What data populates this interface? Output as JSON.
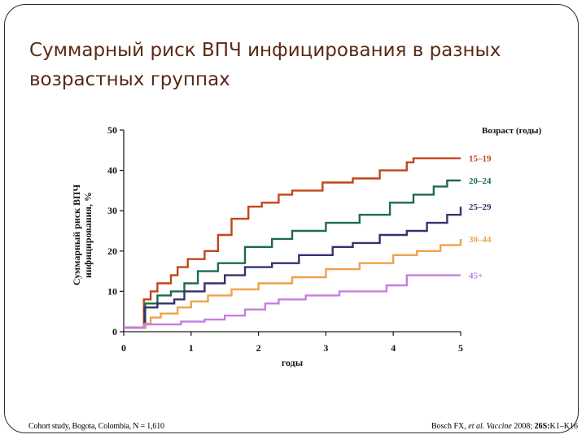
{
  "slide": {
    "title": "Суммарный риск ВПЧ инфицирования в разных возрастных группах"
  },
  "footer": {
    "left": "Cohort study, Bogota, Colombia, N = 1,610",
    "right_authors": "Bosch FX, ",
    "right_etal": "et al. Vaccine",
    "right_year": " 2008; ",
    "right_volume": "26S:",
    "right_pages": "K1–K16"
  },
  "chart_data": {
    "type": "line",
    "title": "",
    "xlabel": "годы",
    "ylabel_lines": [
      "Суммарный риск ВПЧ",
      "инфицирования, %"
    ],
    "legend_title": "Возраст (годы)",
    "xlim": [
      0,
      5
    ],
    "ylim": [
      0,
      50
    ],
    "x_ticks": [
      0,
      1,
      2,
      3,
      4,
      5
    ],
    "y_ticks": [
      0,
      10,
      20,
      30,
      40,
      50
    ],
    "grid": false,
    "series": [
      {
        "name": "15–19",
        "color": "#c0461a",
        "points": [
          [
            0,
            1
          ],
          [
            0.27,
            1
          ],
          [
            0.3,
            8
          ],
          [
            0.4,
            10
          ],
          [
            0.5,
            12
          ],
          [
            0.7,
            14
          ],
          [
            0.8,
            16
          ],
          [
            0.95,
            18
          ],
          [
            1.2,
            20
          ],
          [
            1.4,
            24
          ],
          [
            1.6,
            28
          ],
          [
            1.85,
            31
          ],
          [
            2.05,
            32
          ],
          [
            2.3,
            34
          ],
          [
            2.5,
            35
          ],
          [
            2.95,
            37
          ],
          [
            3.4,
            38
          ],
          [
            3.8,
            40
          ],
          [
            4.2,
            42
          ],
          [
            4.3,
            43
          ],
          [
            5.0,
            43
          ]
        ]
      },
      {
        "name": "20–24",
        "color": "#1e6b4c",
        "points": [
          [
            0,
            1
          ],
          [
            0.27,
            1
          ],
          [
            0.32,
            7
          ],
          [
            0.5,
            9
          ],
          [
            0.7,
            10
          ],
          [
            0.9,
            12
          ],
          [
            1.1,
            15
          ],
          [
            1.4,
            17
          ],
          [
            1.8,
            21
          ],
          [
            2.2,
            23
          ],
          [
            2.5,
            25
          ],
          [
            3.0,
            27
          ],
          [
            3.5,
            29
          ],
          [
            3.95,
            32
          ],
          [
            4.3,
            34
          ],
          [
            4.6,
            36
          ],
          [
            4.8,
            37.5
          ],
          [
            5.0,
            37.5
          ]
        ]
      },
      {
        "name": "25–29",
        "color": "#3a2f6e",
        "points": [
          [
            0,
            1
          ],
          [
            0.27,
            1
          ],
          [
            0.31,
            6
          ],
          [
            0.5,
            7
          ],
          [
            0.75,
            8
          ],
          [
            0.9,
            10
          ],
          [
            1.2,
            12
          ],
          [
            1.5,
            14
          ],
          [
            1.8,
            16
          ],
          [
            2.2,
            17
          ],
          [
            2.6,
            19
          ],
          [
            3.1,
            21
          ],
          [
            3.4,
            22
          ],
          [
            3.8,
            24
          ],
          [
            4.2,
            25
          ],
          [
            4.5,
            27
          ],
          [
            4.8,
            29
          ],
          [
            5.0,
            31
          ]
        ]
      },
      {
        "name": "30–44",
        "color": "#f0a24b",
        "points": [
          [
            0,
            1
          ],
          [
            0.27,
            1
          ],
          [
            0.32,
            2
          ],
          [
            0.4,
            3.5
          ],
          [
            0.55,
            4.5
          ],
          [
            0.8,
            6
          ],
          [
            1.0,
            7.5
          ],
          [
            1.25,
            9
          ],
          [
            1.6,
            10.5
          ],
          [
            2.0,
            12
          ],
          [
            2.5,
            13.5
          ],
          [
            3.0,
            15.5
          ],
          [
            3.5,
            17
          ],
          [
            4.0,
            19
          ],
          [
            4.35,
            20
          ],
          [
            4.7,
            21.5
          ],
          [
            5.0,
            23
          ]
        ]
      },
      {
        "name": "45+",
        "color": "#c77de0",
        "points": [
          [
            0,
            1
          ],
          [
            0.27,
            1
          ],
          [
            0.3,
            1.8
          ],
          [
            0.85,
            2.5
          ],
          [
            1.2,
            3
          ],
          [
            1.5,
            4
          ],
          [
            1.8,
            5.5
          ],
          [
            2.1,
            7
          ],
          [
            2.3,
            8
          ],
          [
            2.7,
            9
          ],
          [
            3.2,
            10
          ],
          [
            3.9,
            11.5
          ],
          [
            4.2,
            14
          ],
          [
            5.0,
            14
          ]
        ]
      }
    ]
  }
}
